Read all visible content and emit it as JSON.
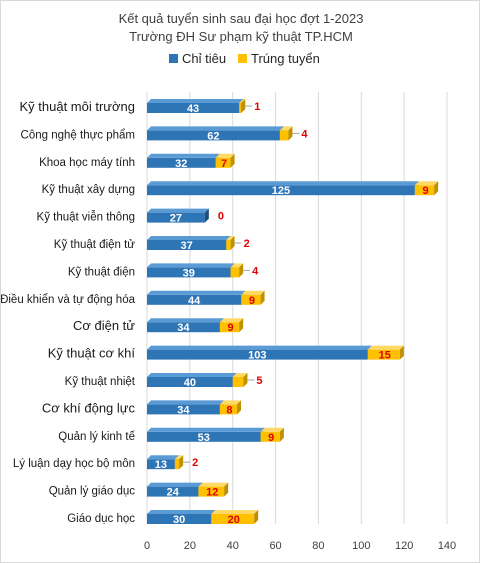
{
  "chart_data": {
    "type": "bar",
    "orientation": "horizontal",
    "stacked": true,
    "style_3d": true,
    "title_lines": [
      "Kết quả tuyển sinh sau đại học đợt 1-2023",
      "Trường ĐH Sư phạm kỹ thuật TP.HCM"
    ],
    "legend_position": "top",
    "grid": true,
    "xlim": [
      0,
      140
    ],
    "x_ticks": [
      0,
      20,
      40,
      60,
      80,
      100,
      120,
      140
    ],
    "categories": [
      "Kỹ thuật môi trường",
      "Công nghệ thực phẩm",
      "Khoa học máy tính",
      "Kỹ thuật xây dựng",
      "Kỹ thuật viễn thông",
      "Kỹ thuật điện tử",
      "Kỹ thuật điện",
      "Điều khiển và tự động hóa",
      "Cơ điện tử",
      "Kỹ thuật cơ khí",
      "Kỹ thuật nhiệt",
      "Cơ khí động lực",
      "Quản lý kinh tế",
      "Lý luận dạy học bộ môn",
      "Quản lý giáo dục",
      "Giáo dục học"
    ],
    "series": [
      {
        "name": "Chỉ tiêu",
        "color": "#2e75b6",
        "values": [
          43,
          62,
          32,
          125,
          27,
          37,
          39,
          44,
          34,
          103,
          40,
          34,
          53,
          13,
          24,
          30
        ]
      },
      {
        "name": "Trúng tuyển",
        "color": "#ffc000",
        "values": [
          1,
          4,
          7,
          9,
          0,
          2,
          4,
          9,
          9,
          15,
          5,
          8,
          9,
          2,
          12,
          20
        ]
      }
    ]
  }
}
